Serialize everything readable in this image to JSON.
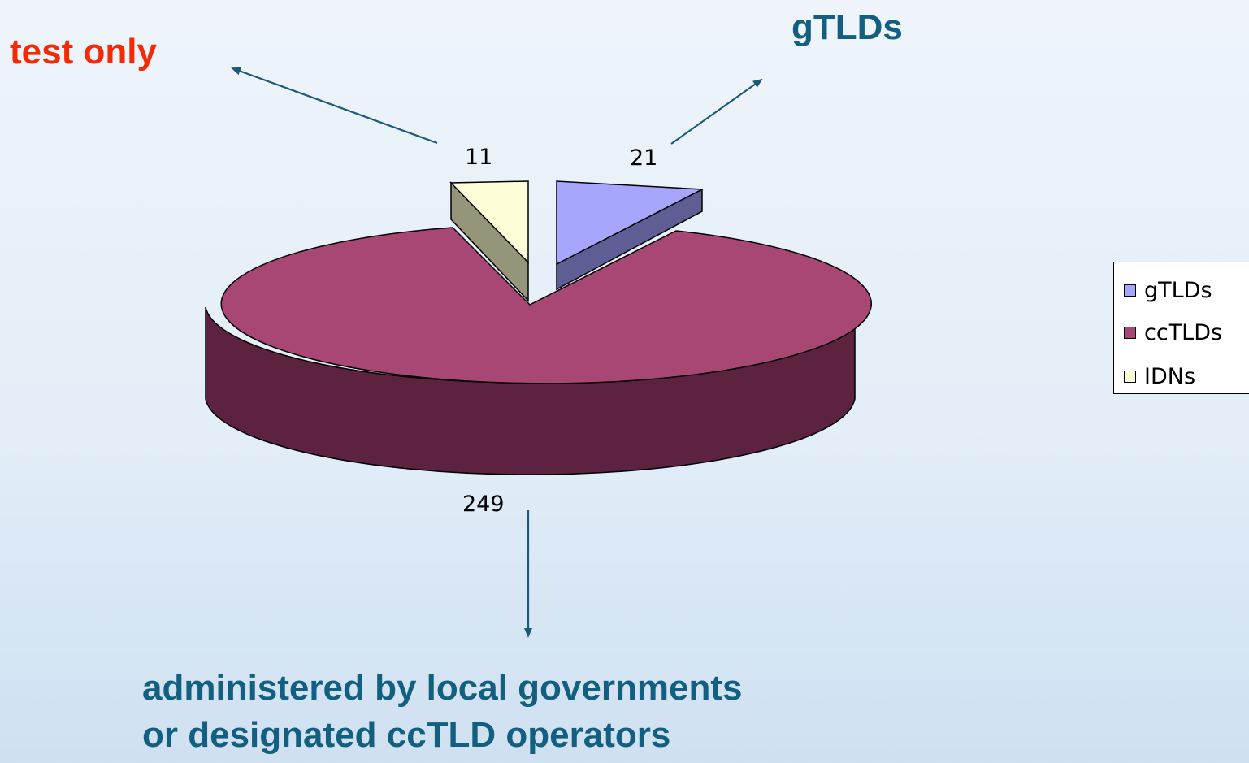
{
  "chart_data": {
    "type": "pie",
    "style": "3d-exploded",
    "categories": [
      "gTLDs",
      "ccTLDs",
      "IDNs"
    ],
    "values": [
      21,
      249,
      11
    ],
    "data_labels": [
      "21",
      "249",
      "11"
    ],
    "legend": {
      "position": "right",
      "entries": [
        "gTLDs",
        "ccTLDs",
        "IDNs"
      ]
    },
    "colors": {
      "gTLDs": "#a6a6fd",
      "ccTLDs": "#a84674",
      "IDNs": "#fdfdd8"
    }
  },
  "annotations": {
    "idn_note": "test only",
    "gtld_note": "gTLDs",
    "cc_note_line1": "administered by local governments",
    "cc_note_line2": "or designated ccTLD operators"
  },
  "theme": {
    "annotation_red": "#f42a05",
    "annotation_blue": "#135f7f",
    "arrow_color": "#1c5a78"
  }
}
